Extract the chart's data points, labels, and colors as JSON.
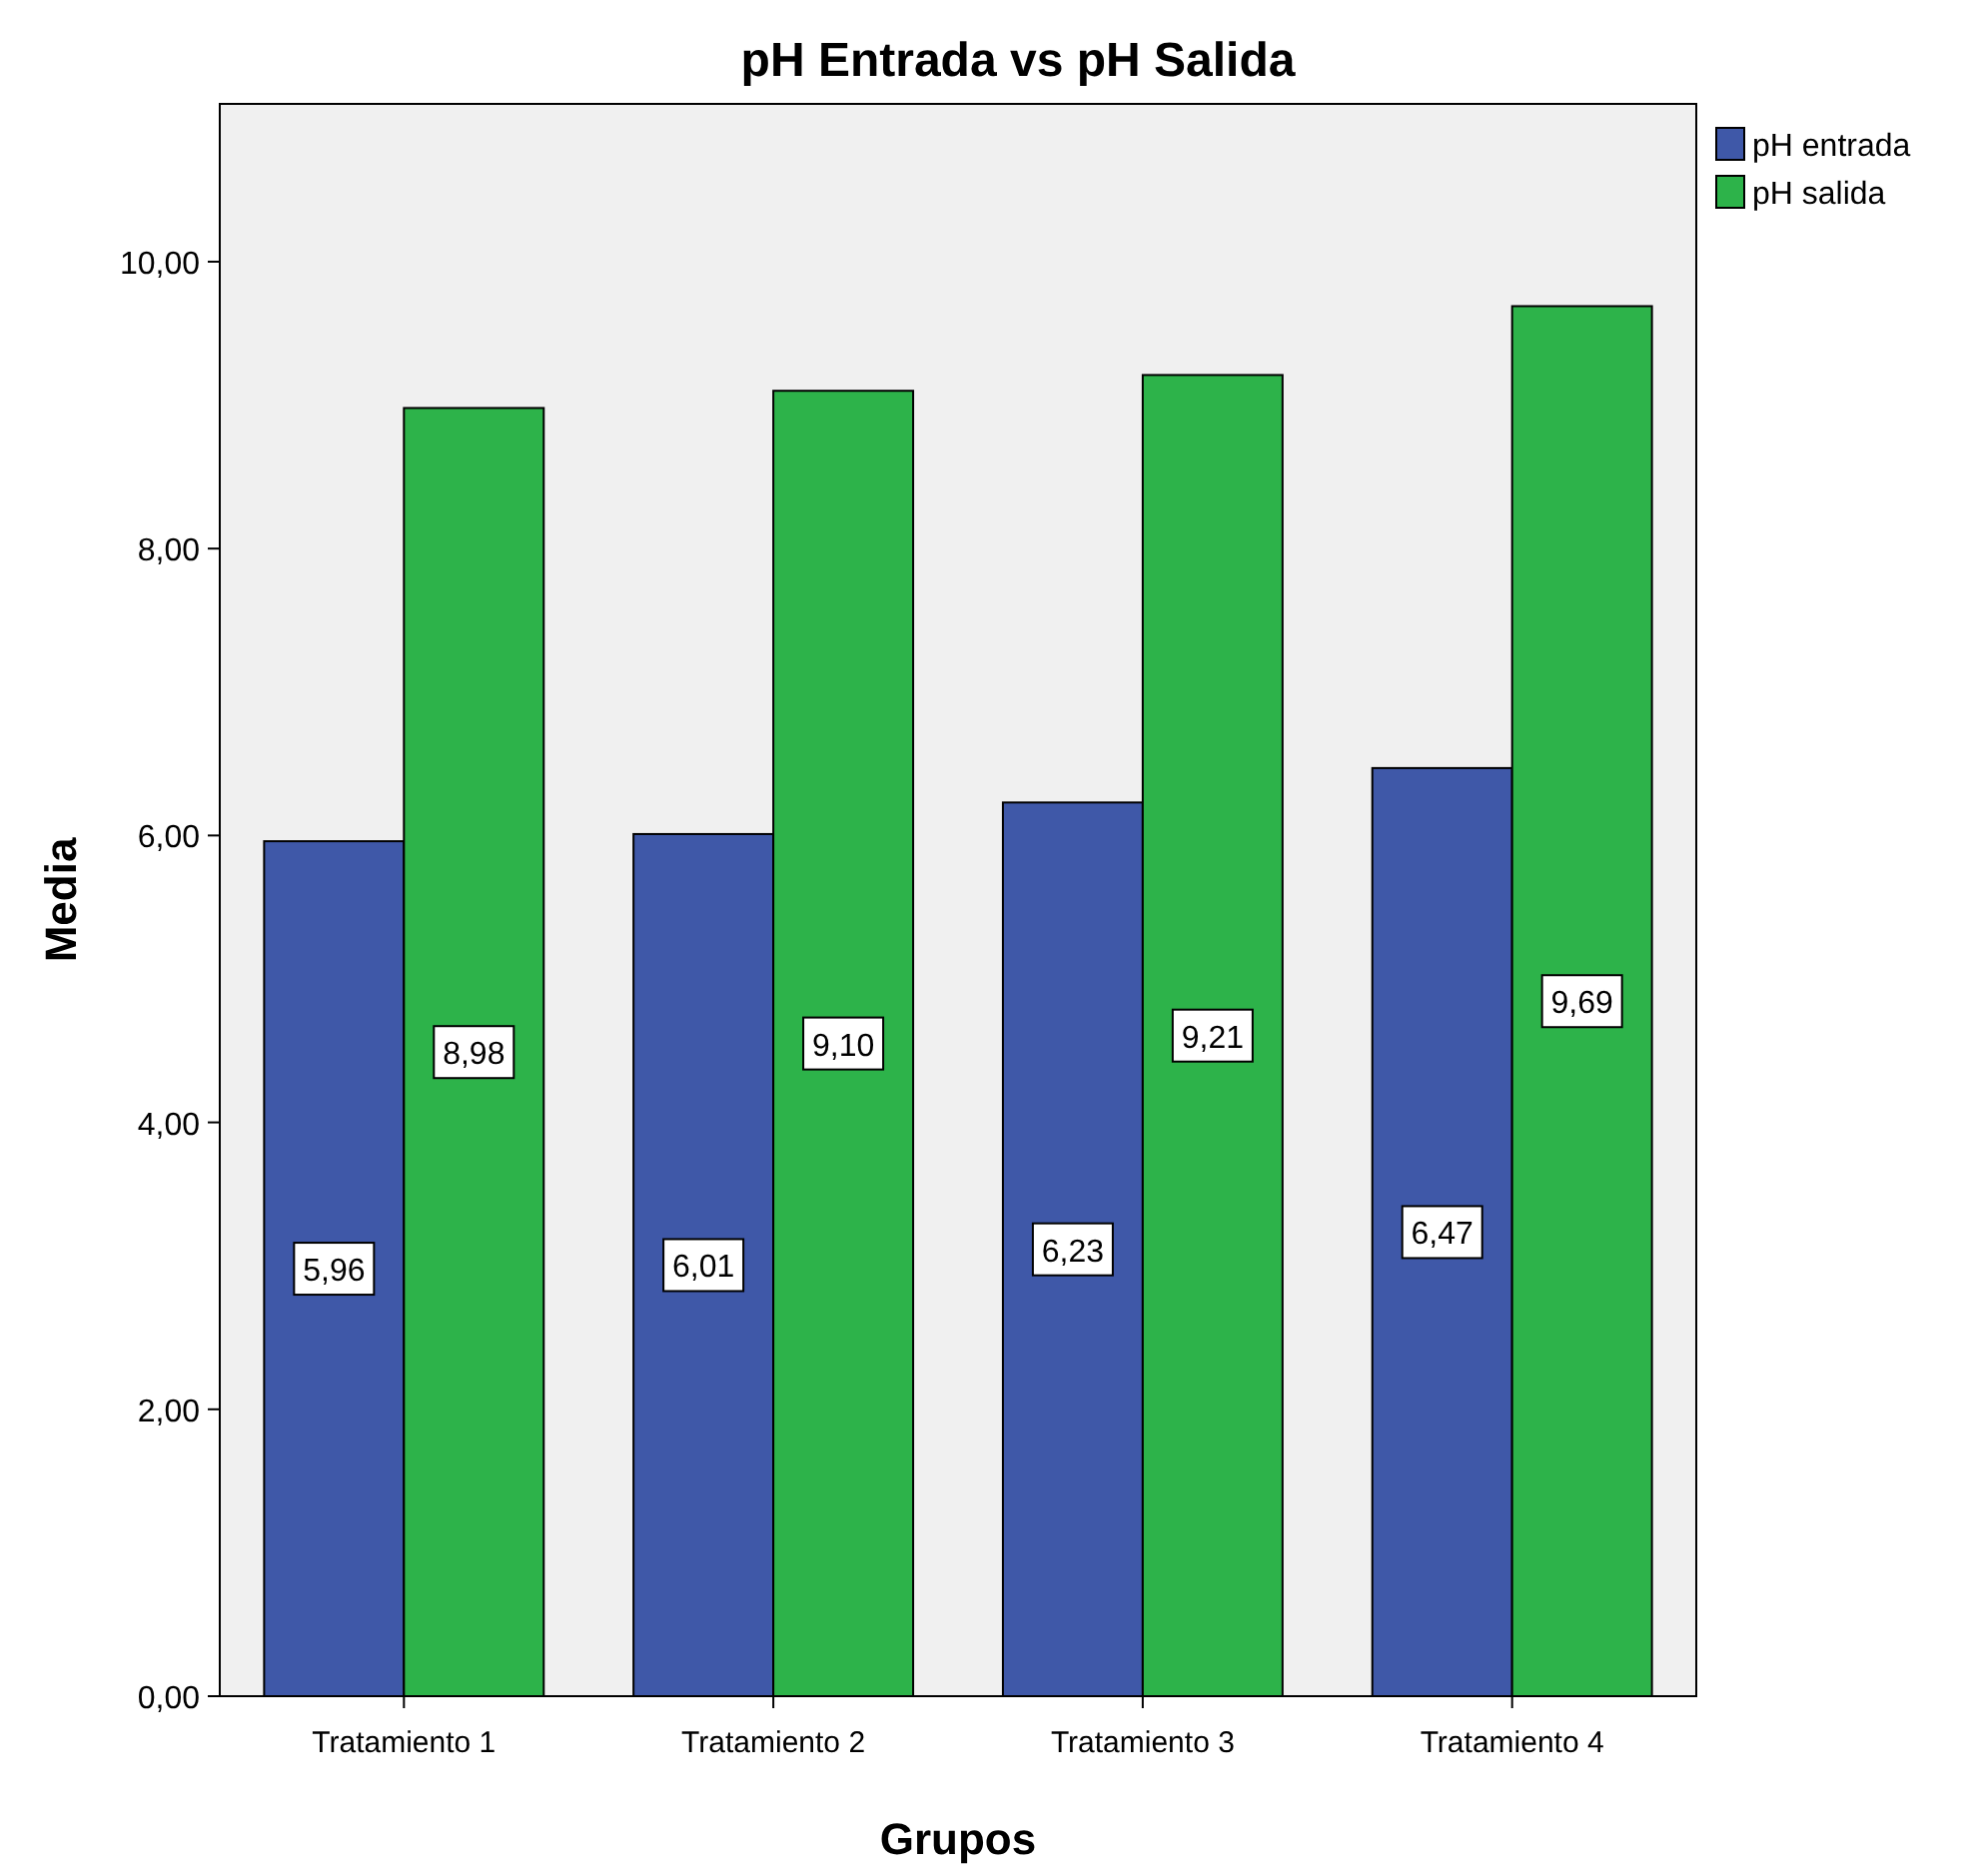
{
  "chart_data": {
    "type": "bar",
    "title": "pH Entrada vs pH Salida",
    "xlabel": "Grupos",
    "ylabel": "Media",
    "categories": [
      "Tratamiento 1",
      "Tratamiento 2",
      "Tratamiento 3",
      "Tratamiento 4"
    ],
    "series": [
      {
        "name": "pH entrada",
        "color": "#3f58a8",
        "values": [
          5.96,
          6.01,
          6.23,
          6.47
        ],
        "value_labels": [
          "5,96",
          "6,01",
          "6,23",
          "6,47"
        ]
      },
      {
        "name": "pH salida",
        "color": "#2db34a",
        "values": [
          8.98,
          9.1,
          9.21,
          9.69
        ],
        "value_labels": [
          "8,98",
          "9,10",
          "9,21",
          "9,69"
        ]
      }
    ],
    "ylim": [
      0,
      11.1
    ],
    "yticks": [
      {
        "value": 0,
        "label": "0,00"
      },
      {
        "value": 2,
        "label": "2,00"
      },
      {
        "value": 4,
        "label": "4,00"
      },
      {
        "value": 6,
        "label": "6,00"
      },
      {
        "value": 8,
        "label": "8,00"
      },
      {
        "value": 10,
        "label": "10,00"
      }
    ],
    "grid": false,
    "legend": "top right"
  }
}
